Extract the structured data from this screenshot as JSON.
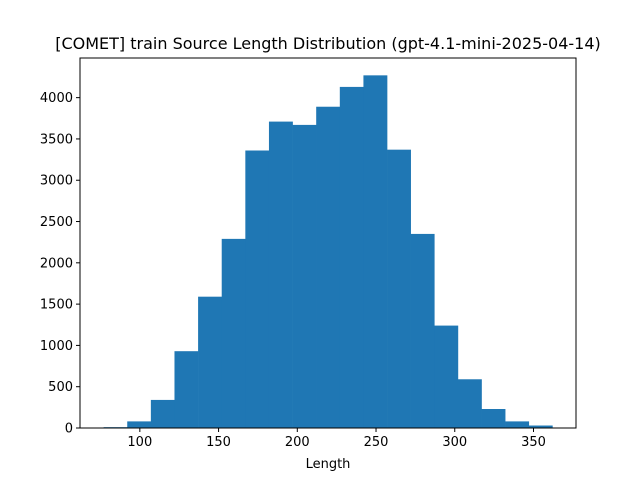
{
  "chart_data": {
    "type": "bar",
    "title": "[COMET] train Source Length Distribution (gpt-4.1-mini-2025-04-14)",
    "xlabel": "Length",
    "ylabel": "",
    "bin_edges": [
      77,
      92,
      107,
      122,
      137,
      152,
      167,
      182,
      197,
      212,
      227,
      242,
      257,
      272,
      287,
      302,
      317,
      332,
      347,
      362
    ],
    "values": [
      10,
      80,
      340,
      930,
      1590,
      2290,
      3360,
      3710,
      3670,
      3890,
      4130,
      4270,
      3370,
      2350,
      1240,
      590,
      230,
      80,
      30
    ],
    "xlim": [
      62,
      377
    ],
    "ylim": [
      0,
      4480
    ],
    "x_ticks": [
      100,
      150,
      200,
      250,
      300,
      350
    ],
    "y_ticks": [
      0,
      500,
      1000,
      1500,
      2000,
      2500,
      3000,
      3500,
      4000
    ],
    "bar_color": "#1f77b4",
    "grid": false
  }
}
